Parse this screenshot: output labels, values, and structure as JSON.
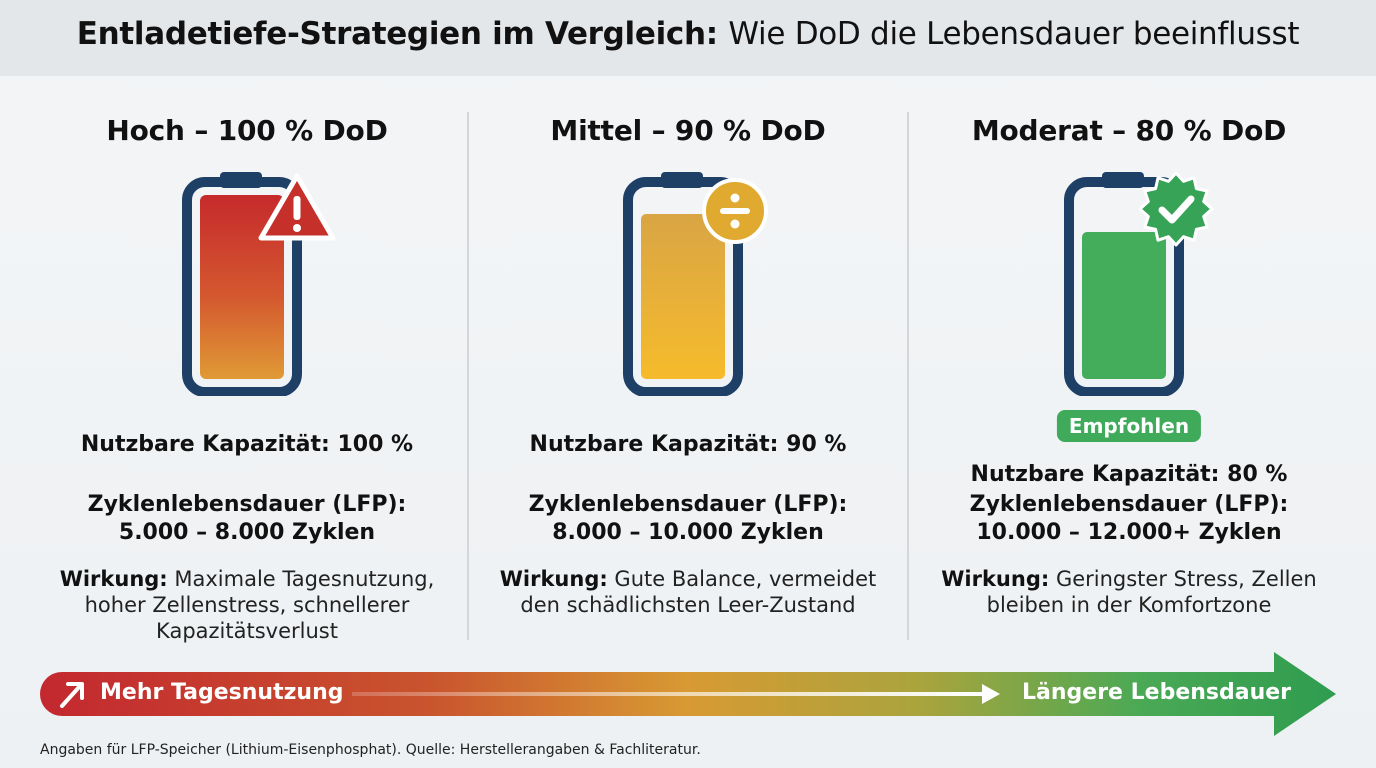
{
  "title": {
    "bold": "Entladetiefe-Strategien im Vergleich:",
    "light": "Wie DoD die Lebensdauer beeinflusst"
  },
  "columns": [
    {
      "title": "Hoch – 100 % DoD",
      "capacity": "Nutzbare Kapazität: 100 %",
      "cycle_label": "Zyklenlebensdauer (LFP):",
      "cycles": "5.000 – 8.000 Zyklen",
      "effect_label": "Wirkung:",
      "effect_text_1": " Maximale Tagesnutzung,",
      "effect_text_2": "hoher Zellenstress, schnellerer",
      "effect_text_3": "Kapazitätsverlust",
      "icon": "warning-icon",
      "fill_level": 1.0,
      "color": "#d43a2f"
    },
    {
      "title": "Mittel – 90 % DoD",
      "capacity": "Nutzbare Kapazität: 90 %",
      "cycle_label": "Zyklenlebensdauer (LFP):",
      "cycles": "8.000 – 10.000 Zyklen",
      "effect_label": "Wirkung:",
      "effect_text_1": " Gute Balance, vermeidet",
      "effect_text_2": "den schädlichsten Leer-Zustand",
      "icon": "divide-icon",
      "fill_level": 0.9,
      "color": "#e0a92f"
    },
    {
      "title": "Moderat – 80 % DoD",
      "badge": "Empfohlen",
      "capacity": "Nutzbare Kapazität: 80 %",
      "cycle_label": "Zyklenlebensdauer (LFP):",
      "cycles": "10.000 – 12.000+ Zyklen",
      "effect_label": "Wirkung:",
      "effect_text_1": " Geringster Stress, Zellen",
      "effect_text_2": "bleiben in der Komfortzone",
      "icon": "check-badge-icon",
      "fill_level": 0.8,
      "color": "#43ad5c"
    }
  ],
  "arrow": {
    "left_label": "Mehr Tagesnutzung",
    "right_label": "Längere Lebensdauer",
    "left_icon": "trend-up-arrow-icon"
  },
  "footnote": "Angaben für LFP-Speicher (Lithium-Eisenphosphat). Quelle: Herstellerangaben & Fachliteratur.",
  "colors": {
    "navy": "#1e3f66",
    "red": "#c5302b",
    "amber": "#e0a92f",
    "green": "#3faa5a"
  }
}
